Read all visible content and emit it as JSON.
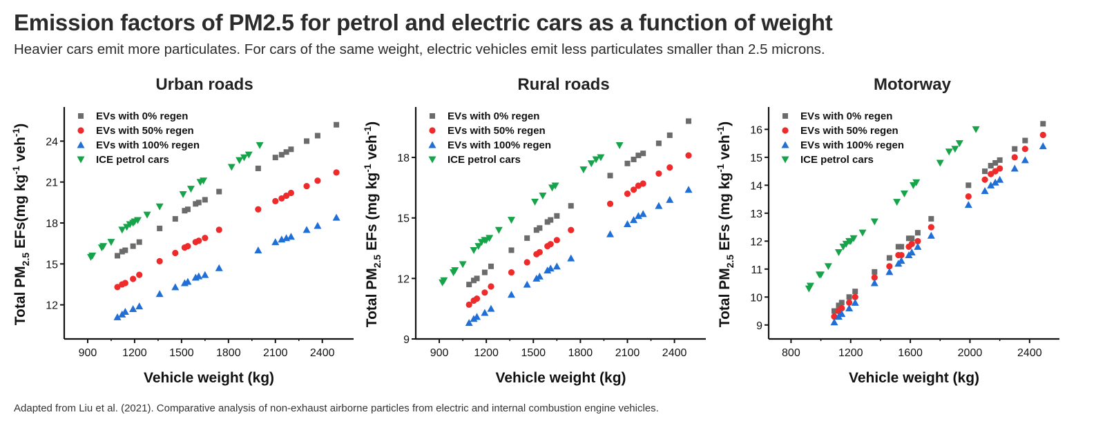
{
  "title": "Emission factors of PM2.5 for petrol and electric cars as a function of weight",
  "subtitle": "Heavier cars emit more particulates. For cars of the same weight, electric vehicles emit less particulates smaller than 2.5 microns.",
  "caption": "Adapted from Liu et al. (2021). Comparative analysis of non-exhaust airborne particles from electric and internal combustion engine vehicles.",
  "colors": {
    "ev0": "#6b6b6b",
    "ev50": "#ee2a2a",
    "ev100": "#1f6fd6",
    "ice": "#16a34a"
  },
  "chart_data": [
    {
      "type": "scatter",
      "title": "Urban roads",
      "xlabel": "Vehicle weight (kg)",
      "ylabel_prefix": "Total PM",
      "ylabel_sub": "2.5",
      "ylabel_suffix": " EFs(mg kg",
      "ylabel_sup1": "-1",
      "ylabel_mid": " veh",
      "ylabel_sup2": "-1",
      "ylabel_end": ")",
      "xlim": [
        750,
        2600
      ],
      "ylim": [
        9.5,
        26.5
      ],
      "xticks": [
        900,
        1200,
        1500,
        1800,
        2100,
        2400
      ],
      "yticks": [
        12,
        15,
        18,
        21,
        24
      ],
      "legend_position": "top-left",
      "series": [
        {
          "name": "EVs with 0% regen",
          "marker": "square",
          "color": "#6b6b6b",
          "x": [
            1090,
            1120,
            1140,
            1190,
            1230,
            1360,
            1460,
            1520,
            1540,
            1590,
            1610,
            1650,
            1740,
            1990,
            2100,
            2140,
            2170,
            2200,
            2300,
            2370,
            2490
          ],
          "y": [
            15.6,
            15.9,
            16.0,
            16.3,
            16.6,
            17.6,
            18.3,
            18.9,
            19.0,
            19.4,
            19.5,
            19.7,
            20.3,
            22.0,
            22.8,
            23.0,
            23.2,
            23.4,
            24.0,
            24.4,
            25.2
          ]
        },
        {
          "name": "EVs with 50% regen",
          "marker": "circle",
          "color": "#ee2a2a",
          "x": [
            1090,
            1120,
            1140,
            1190,
            1230,
            1360,
            1460,
            1520,
            1540,
            1590,
            1610,
            1650,
            1740,
            1990,
            2100,
            2140,
            2170,
            2200,
            2300,
            2370,
            2490
          ],
          "y": [
            13.3,
            13.5,
            13.6,
            13.9,
            14.2,
            15.2,
            15.8,
            16.2,
            16.3,
            16.6,
            16.7,
            16.9,
            17.5,
            19.0,
            19.6,
            19.8,
            20.0,
            20.2,
            20.7,
            21.1,
            21.7
          ]
        },
        {
          "name": "EVs with 100% regen",
          "marker": "triangle-up",
          "color": "#1f6fd6",
          "x": [
            1090,
            1120,
            1140,
            1190,
            1230,
            1360,
            1460,
            1520,
            1540,
            1590,
            1610,
            1650,
            1740,
            1990,
            2100,
            2140,
            2170,
            2200,
            2300,
            2370,
            2490
          ],
          "y": [
            11.1,
            11.3,
            11.5,
            11.7,
            11.9,
            12.8,
            13.3,
            13.6,
            13.7,
            14.0,
            14.1,
            14.2,
            14.7,
            16.0,
            16.6,
            16.8,
            16.9,
            17.0,
            17.5,
            17.8,
            18.4
          ]
        },
        {
          "name": "ICE petrol cars",
          "marker": "triangle-down",
          "color": "#16a34a",
          "x": [
            920,
            930,
            990,
            1000,
            1050,
            1120,
            1150,
            1170,
            1190,
            1200,
            1220,
            1280,
            1360,
            1510,
            1560,
            1620,
            1640,
            1820,
            1870,
            1900,
            1930,
            2000
          ],
          "y": [
            15.5,
            15.6,
            16.2,
            16.3,
            16.6,
            17.5,
            17.7,
            17.9,
            18.0,
            18.1,
            18.2,
            18.6,
            19.2,
            20.1,
            20.5,
            21.0,
            21.1,
            22.1,
            22.6,
            22.8,
            23.0,
            23.7
          ]
        }
      ]
    },
    {
      "type": "scatter",
      "title": "Rural roads",
      "xlabel": "Vehicle weight (kg)",
      "ylabel_prefix": "Total PM",
      "ylabel_sub": "2.5",
      "ylabel_suffix": " EFs (mg kg",
      "ylabel_sup1": "-1",
      "ylabel_mid": " veh",
      "ylabel_sup2": "-1",
      "ylabel_end": ")",
      "xlim": [
        750,
        2600
      ],
      "ylim": [
        9,
        20.5
      ],
      "xticks": [
        900,
        1200,
        1500,
        1800,
        2100,
        2400
      ],
      "yticks": [
        9,
        12,
        15,
        18
      ],
      "legend_position": "top-left",
      "series": [
        {
          "name": "EVs with 0% regen",
          "marker": "square",
          "color": "#6b6b6b",
          "x": [
            1090,
            1120,
            1140,
            1190,
            1230,
            1360,
            1460,
            1520,
            1540,
            1590,
            1610,
            1650,
            1740,
            1990,
            2100,
            2140,
            2170,
            2200,
            2300,
            2370,
            2490
          ],
          "y": [
            11.7,
            11.9,
            12.0,
            12.3,
            12.6,
            13.4,
            14.0,
            14.4,
            14.5,
            14.8,
            14.9,
            15.1,
            15.6,
            17.1,
            17.7,
            17.9,
            18.1,
            18.2,
            18.7,
            19.1,
            19.8
          ]
        },
        {
          "name": "EVs with 50% regen",
          "marker": "circle",
          "color": "#ee2a2a",
          "x": [
            1090,
            1120,
            1140,
            1190,
            1230,
            1360,
            1460,
            1520,
            1540,
            1590,
            1610,
            1650,
            1740,
            1990,
            2100,
            2140,
            2170,
            2200,
            2300,
            2370,
            2490
          ],
          "y": [
            10.7,
            10.9,
            11.0,
            11.3,
            11.6,
            12.3,
            12.8,
            13.2,
            13.3,
            13.6,
            13.7,
            13.9,
            14.4,
            15.7,
            16.2,
            16.4,
            16.6,
            16.7,
            17.2,
            17.5,
            18.1
          ]
        },
        {
          "name": "EVs with 100% regen",
          "marker": "triangle-up",
          "color": "#1f6fd6",
          "x": [
            1090,
            1120,
            1140,
            1190,
            1230,
            1360,
            1460,
            1520,
            1540,
            1590,
            1610,
            1650,
            1740,
            1990,
            2100,
            2140,
            2170,
            2200,
            2300,
            2370,
            2490
          ],
          "y": [
            9.8,
            10.0,
            10.1,
            10.3,
            10.5,
            11.2,
            11.7,
            12.0,
            12.1,
            12.4,
            12.5,
            12.6,
            13.0,
            14.2,
            14.7,
            14.9,
            15.1,
            15.2,
            15.6,
            15.9,
            16.4
          ]
        },
        {
          "name": "ICE petrol cars",
          "marker": "triangle-down",
          "color": "#16a34a",
          "x": [
            920,
            930,
            990,
            1000,
            1050,
            1120,
            1150,
            1170,
            1190,
            1200,
            1220,
            1280,
            1360,
            1510,
            1560,
            1620,
            1640,
            1820,
            1870,
            1900,
            1930,
            2050
          ],
          "y": [
            11.8,
            11.9,
            12.3,
            12.4,
            12.7,
            13.4,
            13.6,
            13.8,
            13.9,
            13.9,
            14.0,
            14.4,
            14.9,
            15.8,
            16.1,
            16.5,
            16.6,
            17.4,
            17.7,
            17.9,
            18.0,
            18.6
          ]
        }
      ]
    },
    {
      "type": "scatter",
      "title": "Motorway",
      "xlabel": "Vehicle weight (kg)",
      "ylabel_prefix": "Total PM",
      "ylabel_sub": "2.5",
      "ylabel_suffix": " EFs (mg kg",
      "ylabel_sup1": "-1",
      "ylabel_mid": " veh",
      "ylabel_sup2": "-1",
      "ylabel_end": ")",
      "xlim": [
        650,
        2600
      ],
      "ylim": [
        8.5,
        16.8
      ],
      "xticks": [
        800,
        1200,
        1600,
        2000,
        2400
      ],
      "yticks": [
        9,
        10,
        11,
        12,
        13,
        14,
        15,
        16
      ],
      "legend_position": "top-left",
      "series": [
        {
          "name": "EVs with 0% regen",
          "marker": "square",
          "color": "#6b6b6b",
          "x": [
            1090,
            1120,
            1140,
            1190,
            1230,
            1360,
            1460,
            1520,
            1540,
            1590,
            1610,
            1650,
            1740,
            1990,
            2100,
            2140,
            2170,
            2200,
            2300,
            2370,
            2490
          ],
          "y": [
            9.5,
            9.7,
            9.8,
            10.0,
            10.2,
            10.9,
            11.4,
            11.8,
            11.8,
            12.1,
            12.1,
            12.3,
            12.8,
            14.0,
            14.5,
            14.7,
            14.8,
            14.9,
            15.3,
            15.6,
            16.2
          ]
        },
        {
          "name": "EVs with 50% regen",
          "marker": "circle",
          "color": "#ee2a2a",
          "x": [
            1090,
            1120,
            1140,
            1190,
            1230,
            1360,
            1460,
            1520,
            1540,
            1590,
            1610,
            1650,
            1740,
            1990,
            2100,
            2140,
            2170,
            2200,
            2300,
            2370,
            2490
          ],
          "y": [
            9.3,
            9.5,
            9.6,
            9.8,
            10.0,
            10.7,
            11.1,
            11.5,
            11.5,
            11.8,
            11.9,
            12.0,
            12.5,
            13.6,
            14.2,
            14.4,
            14.5,
            14.6,
            15.0,
            15.3,
            15.8
          ]
        },
        {
          "name": "EVs with 100% regen",
          "marker": "triangle-up",
          "color": "#1f6fd6",
          "x": [
            1090,
            1120,
            1140,
            1190,
            1230,
            1360,
            1460,
            1520,
            1540,
            1590,
            1610,
            1650,
            1740,
            1990,
            2100,
            2140,
            2170,
            2200,
            2300,
            2370,
            2490
          ],
          "y": [
            9.1,
            9.3,
            9.4,
            9.6,
            9.8,
            10.5,
            10.9,
            11.2,
            11.3,
            11.5,
            11.6,
            11.8,
            12.2,
            13.3,
            13.8,
            14.0,
            14.1,
            14.2,
            14.6,
            14.9,
            15.4
          ]
        },
        {
          "name": "ICE petrol cars",
          "marker": "triangle-down",
          "color": "#16a34a",
          "x": [
            920,
            930,
            990,
            1000,
            1050,
            1120,
            1150,
            1170,
            1190,
            1200,
            1220,
            1280,
            1360,
            1510,
            1560,
            1620,
            1640,
            1800,
            1860,
            1900,
            1930,
            2040
          ],
          "y": [
            10.3,
            10.4,
            10.8,
            10.8,
            11.1,
            11.6,
            11.8,
            11.9,
            12.0,
            12.0,
            12.1,
            12.3,
            12.7,
            13.4,
            13.7,
            14.0,
            14.1,
            14.8,
            15.2,
            15.3,
            15.5,
            16.0
          ]
        }
      ]
    }
  ]
}
